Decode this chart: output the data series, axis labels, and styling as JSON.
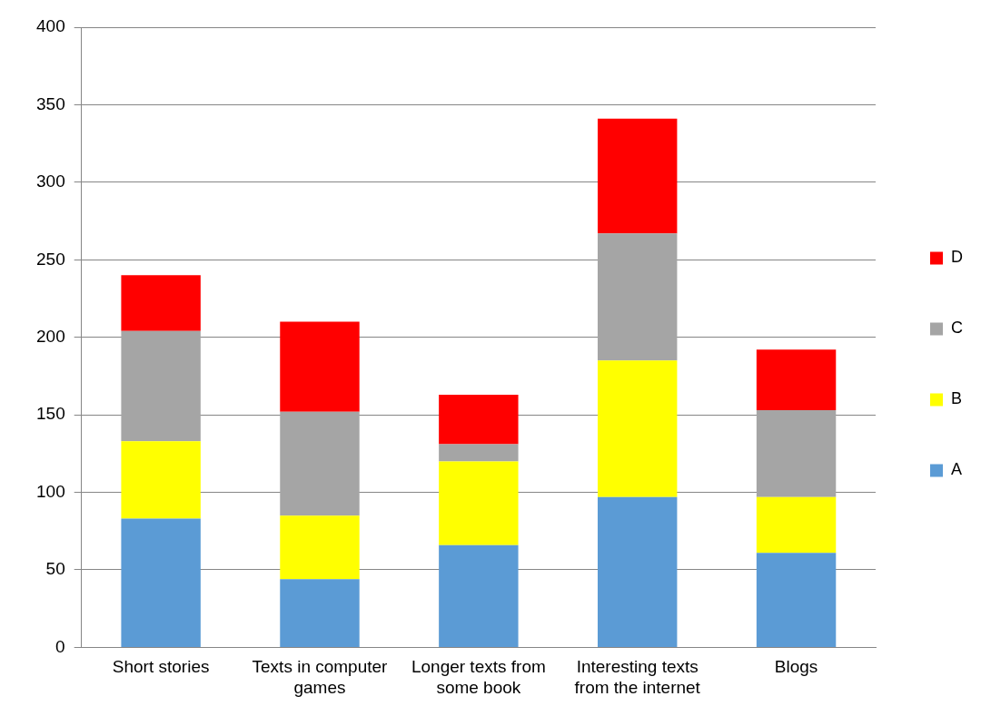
{
  "chart_data": {
    "type": "bar",
    "stacked": true,
    "categories": [
      "Short stories",
      "Texts in computer games",
      "Longer texts from some book",
      "Interesting texts from the internet",
      "Blogs"
    ],
    "series": [
      {
        "name": "A",
        "color": "#5b9bd5",
        "values": [
          83,
          44,
          66,
          97,
          61
        ]
      },
      {
        "name": "B",
        "color": "#ffff00",
        "values": [
          50,
          41,
          54,
          88,
          36
        ]
      },
      {
        "name": "C",
        "color": "#a5a5a5",
        "values": [
          71,
          67,
          11,
          82,
          56
        ]
      },
      {
        "name": "D",
        "color": "#ff0000",
        "values": [
          36,
          58,
          32,
          74,
          39
        ]
      }
    ],
    "ylim": [
      0,
      400
    ],
    "yticks": [
      0,
      50,
      100,
      150,
      200,
      250,
      300,
      350,
      400
    ],
    "grid": "y",
    "legend": "right"
  }
}
